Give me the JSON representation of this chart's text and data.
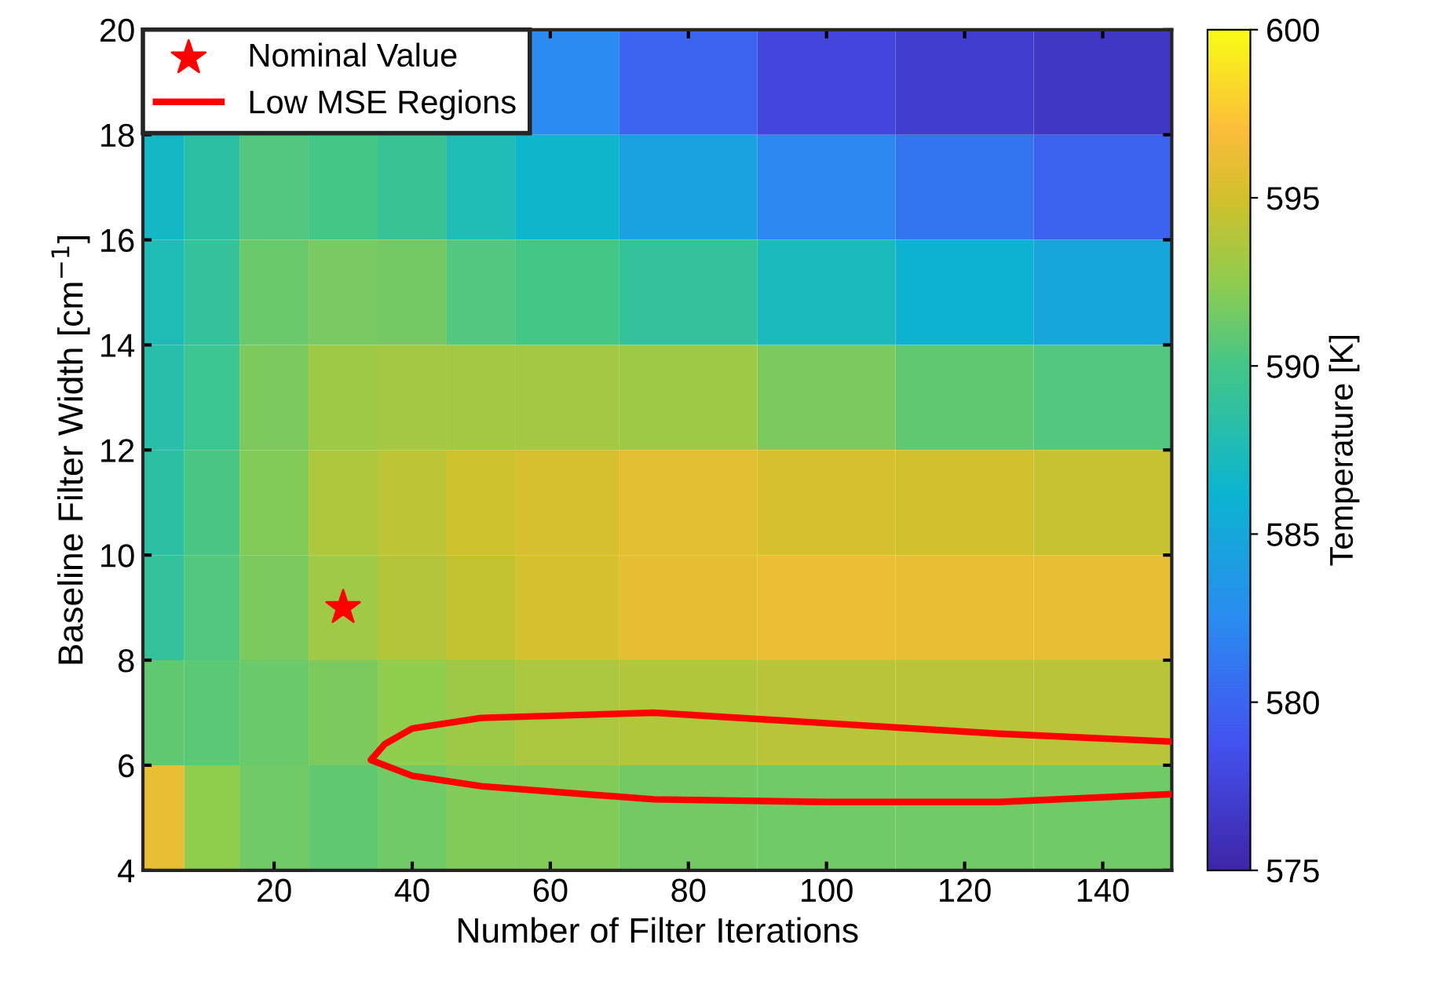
{
  "chart_data": {
    "type": "heatmap",
    "xlabel": "Number of Filter Iterations",
    "ylabel": "Baseline Filter Width [cm$^{−1}$]",
    "clabel": "Temperature [K]",
    "x": [
      4,
      10,
      20,
      30,
      40,
      50,
      60,
      80,
      100,
      120,
      140
    ],
    "y": [
      19,
      17,
      15,
      13,
      11,
      9,
      7,
      5
    ],
    "cells": [
      [
        null,
        null,
        null,
        null,
        null,
        null,
        582.5,
        580,
        577.8,
        577,
        576.5
      ],
      [
        586.8,
        588.5,
        590.5,
        590,
        589.3,
        587.5,
        586.5,
        584.5,
        582.3,
        581,
        579.8
      ],
      [
        587.5,
        589,
        591.3,
        591.7,
        591.6,
        590.5,
        590,
        589,
        587.3,
        586,
        584.8
      ],
      [
        588.2,
        589.5,
        591.8,
        593,
        593.3,
        593.3,
        593.3,
        593,
        591.8,
        591,
        590.5
      ],
      [
        588.5,
        590.2,
        592,
        593.6,
        594.2,
        594.8,
        595.3,
        595.8,
        595.2,
        594.9,
        594.6
      ],
      [
        589,
        590.5,
        591.8,
        593.1,
        593.9,
        594.5,
        595.2,
        595.9,
        596.2,
        596.1,
        596
      ],
      [
        591,
        590.8,
        591.3,
        591.8,
        592.5,
        593,
        593.5,
        593.8,
        594,
        594,
        594
      ],
      [
        596,
        592.5,
        591.5,
        591,
        591.5,
        592,
        592,
        591.6,
        591.5,
        591.5,
        591.5
      ]
    ],
    "clim": [
      575,
      600
    ],
    "cticks": [
      575,
      580,
      585,
      590,
      595,
      600
    ],
    "xlim": [
      1,
      150
    ],
    "xticks": [
      20,
      40,
      60,
      80,
      100,
      120,
      140
    ],
    "ylim": [
      4,
      20
    ],
    "yticks": [
      4,
      6,
      8,
      10,
      12,
      14,
      16,
      18,
      20
    ],
    "series": [
      {
        "name": "Nominal Value",
        "type": "scatter",
        "marker": "star",
        "color": "#ff0000",
        "x": [
          30
        ],
        "values": [
          9
        ]
      },
      {
        "name": "Low MSE Regions",
        "type": "line",
        "color": "#ff0000",
        "x": [
          150,
          125,
          100,
          75,
          50,
          40,
          36,
          34,
          40,
          50,
          75,
          100,
          125,
          150
        ],
        "values": [
          6.45,
          6.6,
          6.8,
          7.0,
          6.9,
          6.7,
          6.4,
          6.1,
          5.8,
          5.6,
          5.35,
          5.3,
          5.3,
          5.45
        ]
      }
    ],
    "legend": "top left",
    "grid": false
  }
}
